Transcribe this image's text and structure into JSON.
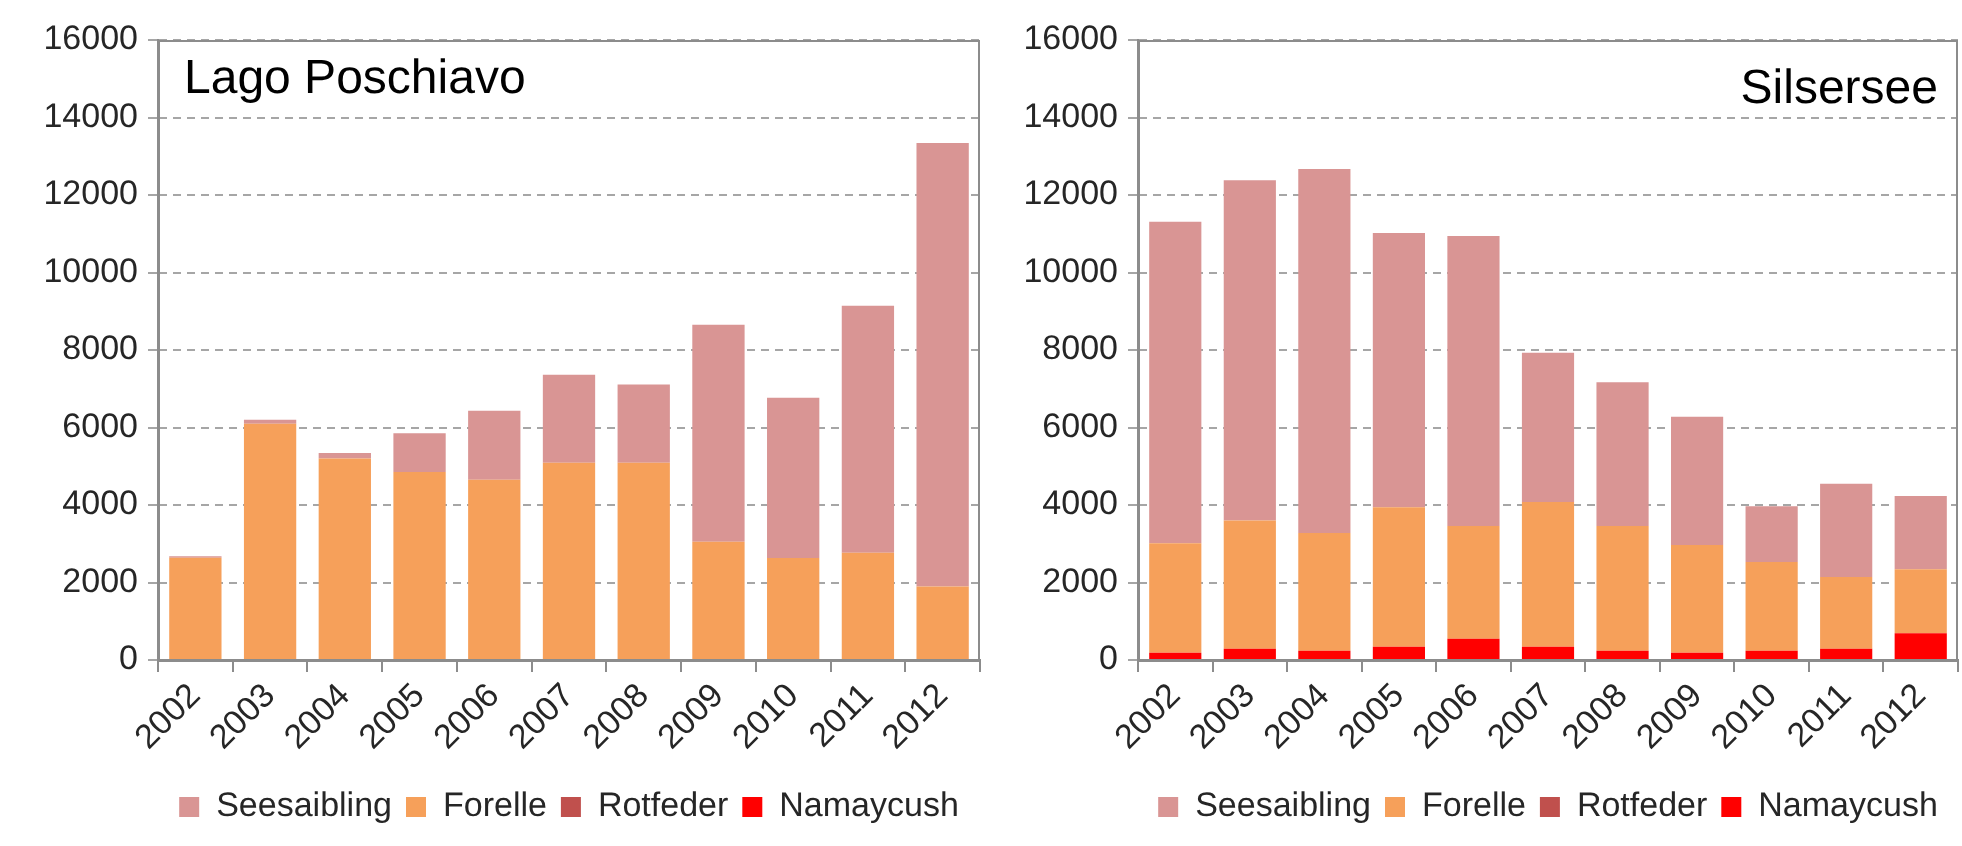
{
  "chart_data": [
    {
      "type": "bar",
      "title": "Lago Poschiavo",
      "stacked": true,
      "categories": [
        "2002",
        "2003",
        "2004",
        "2005",
        "2006",
        "2007",
        "2008",
        "2009",
        "2010",
        "2011",
        "2012"
      ],
      "series": [
        {
          "name": "Namaycush",
          "color": "#ff0000",
          "values": [
            0,
            0,
            0,
            0,
            0,
            0,
            0,
            0,
            0,
            0,
            0
          ]
        },
        {
          "name": "Rotfeder",
          "color": "#c0504d",
          "values": [
            0,
            0,
            0,
            0,
            0,
            0,
            0,
            0,
            0,
            0,
            0
          ]
        },
        {
          "name": "Forelle",
          "color": "#f6a05a",
          "values": [
            2640,
            6100,
            5200,
            4850,
            4650,
            5090,
            5090,
            3050,
            2630,
            2770,
            1900
          ]
        },
        {
          "name": "Seesaibling",
          "color": "#d99594",
          "values": [
            40,
            100,
            140,
            1000,
            1780,
            2270,
            2020,
            5600,
            4140,
            6370,
            11440
          ]
        }
      ],
      "ylim": [
        0,
        16000
      ],
      "yticks": [
        0,
        2000,
        4000,
        6000,
        8000,
        10000,
        12000,
        14000,
        16000
      ],
      "grid": "y",
      "legend": "bottom"
    },
    {
      "type": "bar",
      "title": "Silsersee",
      "stacked": true,
      "categories": [
        "2002",
        "2003",
        "2004",
        "2005",
        "2006",
        "2007",
        "2008",
        "2009",
        "2010",
        "2011",
        "2012"
      ],
      "series": [
        {
          "name": "Namaycush",
          "color": "#ff0000",
          "values": [
            190,
            290,
            240,
            340,
            550,
            340,
            240,
            190,
            240,
            290,
            690
          ]
        },
        {
          "name": "Rotfeder",
          "color": "#c0504d",
          "values": [
            0,
            0,
            0,
            0,
            0,
            0,
            0,
            0,
            0,
            0,
            0
          ]
        },
        {
          "name": "Forelle",
          "color": "#f6a05a",
          "values": [
            2820,
            3310,
            3040,
            3600,
            2910,
            3740,
            3220,
            2780,
            2290,
            1850,
            1650
          ]
        },
        {
          "name": "Seesaibling",
          "color": "#d99594",
          "values": [
            8300,
            8780,
            9390,
            7080,
            7480,
            3850,
            3710,
            3310,
            1440,
            2410,
            1890
          ]
        }
      ],
      "ylim": [
        0,
        16000
      ],
      "yticks": [
        0,
        2000,
        4000,
        6000,
        8000,
        10000,
        12000,
        14000,
        16000
      ],
      "grid": "y",
      "legend": "bottom"
    }
  ]
}
